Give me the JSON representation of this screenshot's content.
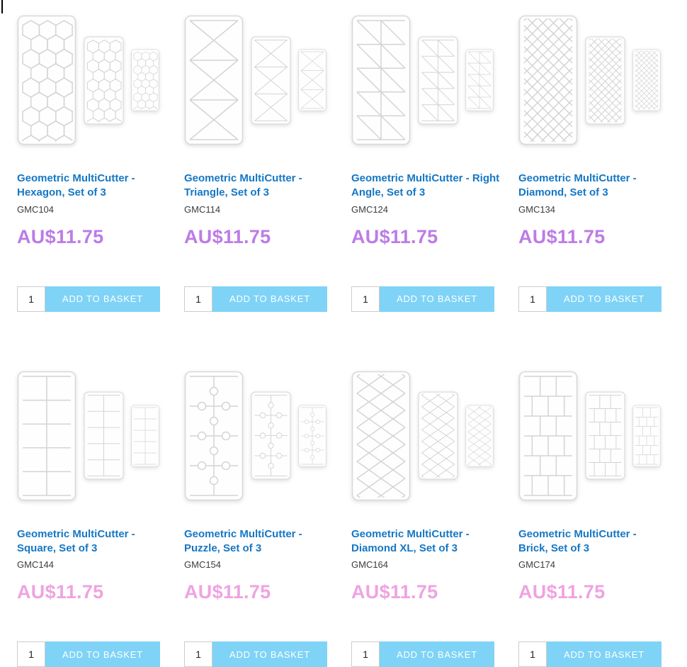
{
  "labels": {
    "add_to_basket": "ADD TO BASKET"
  },
  "colors": {
    "title_blue": "#1577c4",
    "button_blue": "#7fd3f6",
    "price_purple": "#bc7ce6",
    "price_pink": "#efa3e0"
  },
  "products": [
    {
      "name": "Geometric MultiCutter - Hexagon, Set of 3",
      "sku": "GMC104",
      "price": "AU$11.75",
      "qty": "1",
      "pattern": "hexagon",
      "price_color": "#bc7ce6"
    },
    {
      "name": "Geometric MultiCutter - Triangle, Set of 3",
      "sku": "GMC114",
      "price": "AU$11.75",
      "qty": "1",
      "pattern": "triangle",
      "price_color": "#bc7ce6"
    },
    {
      "name": "Geometric MultiCutter - Right Angle, Set of 3",
      "sku": "GMC124",
      "price": "AU$11.75",
      "qty": "1",
      "pattern": "rightangle",
      "price_color": "#bc7ce6"
    },
    {
      "name": "Geometric MultiCutter - Diamond, Set of 3",
      "sku": "GMC134",
      "price": "AU$11.75",
      "qty": "1",
      "pattern": "diamond",
      "price_color": "#bc7ce6"
    },
    {
      "name": "Geometric MultiCutter - Square, Set of 3",
      "sku": "GMC144",
      "price": "AU$11.75",
      "qty": "1",
      "pattern": "square",
      "price_color": "#efa3e0"
    },
    {
      "name": "Geometric MultiCutter - Puzzle, Set of 3",
      "sku": "GMC154",
      "price": "AU$11.75",
      "qty": "1",
      "pattern": "puzzle",
      "price_color": "#efa3e0"
    },
    {
      "name": "Geometric MultiCutter - Diamond XL, Set of 3",
      "sku": "GMC164",
      "price": "AU$11.75",
      "qty": "1",
      "pattern": "diamondxl",
      "price_color": "#efa3e0"
    },
    {
      "name": "Geometric MultiCutter - Brick, Set of 3",
      "sku": "GMC174",
      "price": "AU$11.75",
      "qty": "1",
      "pattern": "brick",
      "price_color": "#efa3e0"
    }
  ]
}
